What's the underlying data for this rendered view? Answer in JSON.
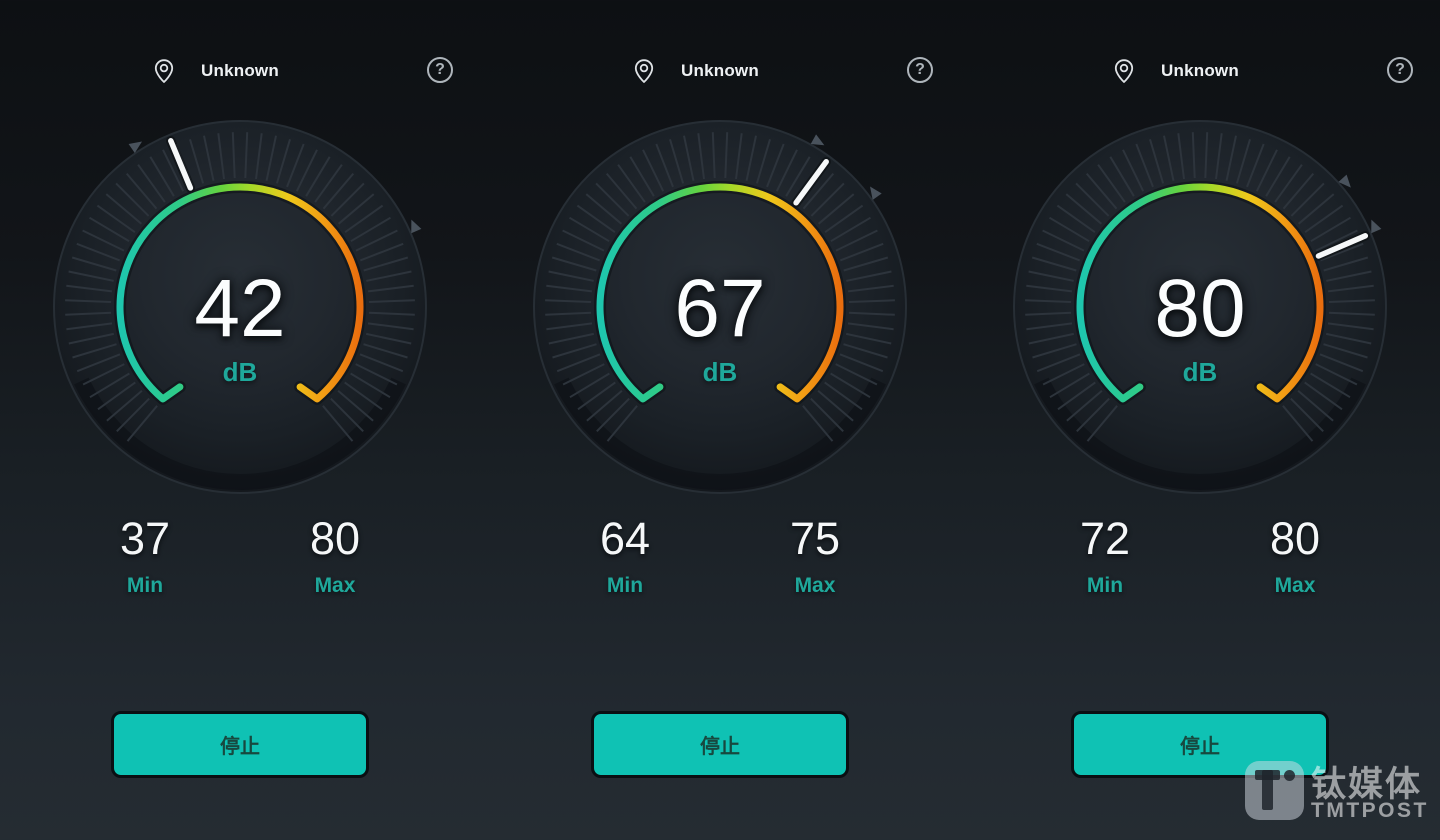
{
  "labels": {
    "min": "Min",
    "max": "Max",
    "stop": "停止"
  },
  "icons": {
    "help": "?",
    "location_pin": "location-pin"
  },
  "meters": [
    {
      "location": "Unknown",
      "value": 42,
      "unit": "dB",
      "min": 37,
      "max": 80
    },
    {
      "location": "Unknown",
      "value": 67,
      "unit": "dB",
      "min": 64,
      "max": 75
    },
    {
      "location": "Unknown",
      "value": 80,
      "unit": "dB",
      "min": 72,
      "max": 80
    }
  ],
  "watermark": {
    "cn": "钛媒体",
    "en": "TMTPOST"
  },
  "colors": {
    "accent_teal": "#0fc2b4",
    "label_teal": "#1fa89b",
    "needle": "#f6f8f9",
    "marker": "#49525c",
    "tick": "#2d343c",
    "arc_gradient": [
      "#1ec6ae",
      "#2fcb87",
      "#64d33f",
      "#a8d928",
      "#eec91b",
      "#f29c14",
      "#e96d0e"
    ],
    "background_top": "#0d1013",
    "background_bottom": "#252c32"
  },
  "chart_data": [
    {
      "type": "gauge",
      "title": "Decibel meter 1",
      "value": 42,
      "unit": "dB",
      "min_marker": 37,
      "max_marker": 80,
      "scale": {
        "deg_per_unit": 2.35,
        "zero_angle_deg": -121.3,
        "arc_span_deg": [
          -140,
          140
        ]
      }
    },
    {
      "type": "gauge",
      "title": "Decibel meter 2",
      "value": 67,
      "unit": "dB",
      "min_marker": 64,
      "max_marker": 75,
      "scale": {
        "deg_per_unit": 2.35,
        "zero_angle_deg": -121.3,
        "arc_span_deg": [
          -140,
          140
        ]
      }
    },
    {
      "type": "gauge",
      "title": "Decibel meter 3",
      "value": 80,
      "unit": "dB",
      "min_marker": 72,
      "max_marker": 80,
      "scale": {
        "deg_per_unit": 2.35,
        "zero_angle_deg": -121.3,
        "arc_span_deg": [
          -140,
          140
        ]
      }
    }
  ]
}
